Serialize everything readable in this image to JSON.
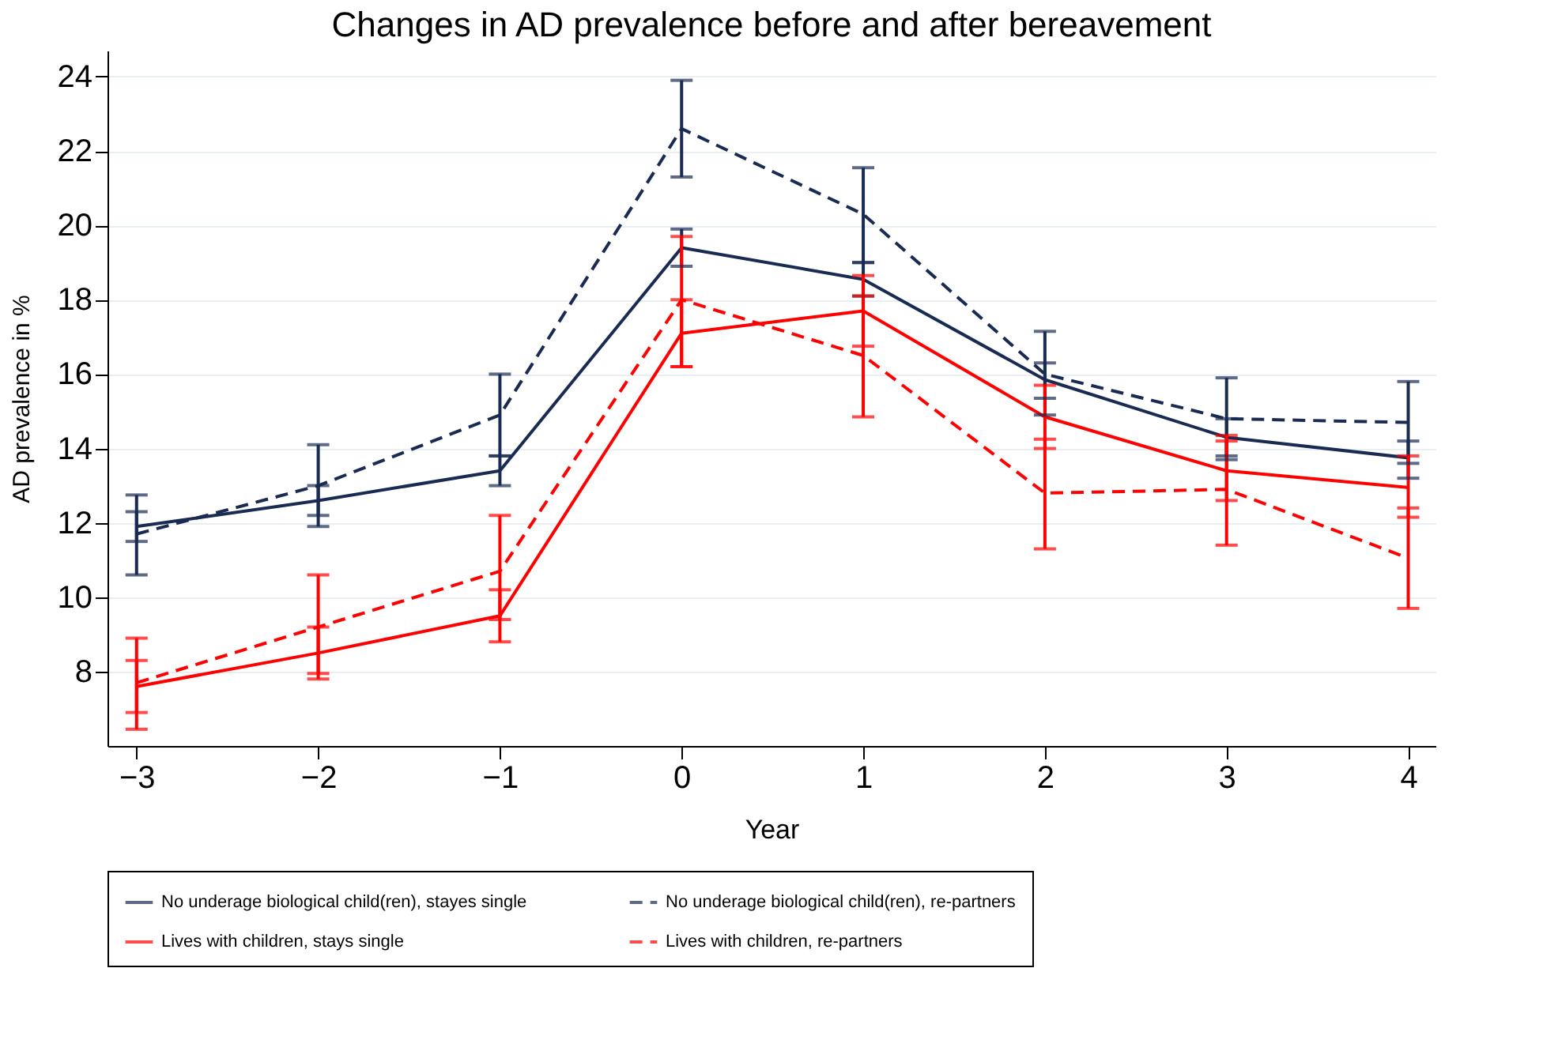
{
  "chart_data": {
    "type": "line",
    "title": "Changes in AD prevalence before and after bereavement",
    "xlabel": "Year",
    "ylabel": "AD prevalence in %",
    "x": [
      -3,
      -2,
      -1,
      0,
      1,
      2,
      3,
      4
    ],
    "xlim": [
      -3.16,
      4.15
    ],
    "xticks": [
      -3,
      -2,
      -1,
      0,
      1,
      2,
      3,
      4
    ],
    "ylim": [
      6,
      24.7
    ],
    "yticks": [
      8,
      10,
      12,
      14,
      16,
      18,
      20,
      22,
      24
    ],
    "grid": "y",
    "legend": "bottom",
    "marker": "none",
    "series": [
      {
        "name": "No underage biological child(ren), stayes single",
        "color": "#1a2b52",
        "line_style": "solid",
        "values": [
          11.9,
          12.6,
          13.4,
          19.4,
          18.55,
          15.85,
          14.3,
          13.75
        ],
        "errors": [
          [
            11.5,
            12.3
          ],
          [
            12.2,
            13.0
          ],
          [
            13.0,
            13.8
          ],
          [
            18.9,
            19.9
          ],
          [
            18.1,
            19.0
          ],
          [
            15.35,
            16.3
          ],
          [
            13.7,
            14.8
          ],
          [
            13.2,
            14.2
          ]
        ]
      },
      {
        "name": "No underage biological child(ren), re-partners",
        "color": "#1a2b52",
        "line_style": "dashed",
        "values": [
          11.7,
          13.0,
          14.9,
          22.6,
          20.3,
          16.0,
          14.8,
          14.7
        ],
        "errors": [
          [
            10.6,
            12.75
          ],
          [
            11.9,
            14.1
          ],
          [
            13.8,
            16.0
          ],
          [
            21.3,
            23.9
          ],
          [
            19.0,
            21.55
          ],
          [
            14.9,
            17.15
          ],
          [
            13.8,
            15.9
          ],
          [
            13.6,
            15.8
          ]
        ]
      },
      {
        "name": "Lives with children, stays single",
        "color": "#ff0000",
        "line_style": "solid",
        "values": [
          7.6,
          8.5,
          9.5,
          17.1,
          17.7,
          14.85,
          13.4,
          12.95
        ],
        "errors": [
          [
            6.9,
            8.3
          ],
          [
            7.95,
            9.2
          ],
          [
            8.8,
            10.2
          ],
          [
            16.2,
            18.0
          ],
          [
            16.75,
            18.65
          ],
          [
            14.0,
            15.7
          ],
          [
            12.6,
            14.2
          ],
          [
            12.15,
            13.8
          ]
        ]
      },
      {
        "name": "Lives with children, re-partners",
        "color": "#ff0000",
        "line_style": "dashed",
        "values": [
          7.7,
          9.2,
          10.7,
          18.0,
          16.5,
          12.8,
          12.9,
          11.05
        ],
        "errors": [
          [
            6.45,
            8.9
          ],
          [
            7.8,
            10.6
          ],
          [
            9.4,
            12.2
          ],
          [
            16.2,
            19.7
          ],
          [
            14.85,
            18.1
          ],
          [
            11.3,
            14.25
          ],
          [
            11.4,
            14.35
          ],
          [
            9.7,
            12.4
          ]
        ]
      }
    ]
  }
}
